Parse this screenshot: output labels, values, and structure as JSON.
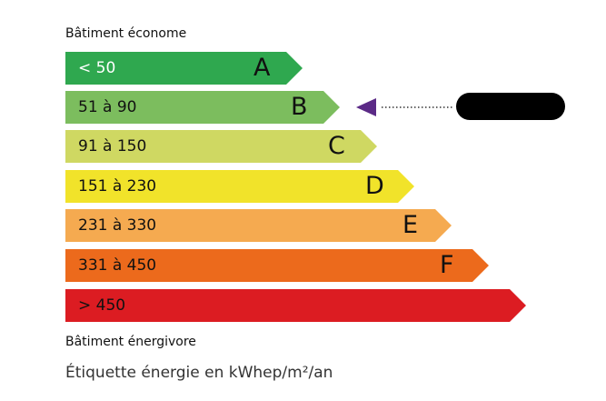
{
  "header": {
    "top_caption": "Bâtiment économe",
    "bottom_caption": "Bâtiment énergivore"
  },
  "classes": [
    {
      "letter": "A",
      "range": "< 50",
      "color": "#2fa84f",
      "text_color": "#ffffff"
    },
    {
      "letter": "B",
      "range": "51 à 90",
      "color": "#7cbd5e",
      "text_color": "#111111"
    },
    {
      "letter": "C",
      "range": "91 à 150",
      "color": "#cfd862",
      "text_color": "#111111"
    },
    {
      "letter": "D",
      "range": "151 à 230",
      "color": "#f1e32a",
      "text_color": "#111111"
    },
    {
      "letter": "E",
      "range": "231 à 330",
      "color": "#f5aa50",
      "text_color": "#111111"
    },
    {
      "letter": "F",
      "range": "331 à 450",
      "color": "#ec6a1c",
      "text_color": "#111111"
    },
    {
      "letter": "",
      "range": "> 450",
      "color": "#dc1c22",
      "text_color": "#111111"
    }
  ],
  "indicator": {
    "class": "B",
    "color": "#5b2a86",
    "label_redacted": true
  },
  "footer": {
    "unit_label": "Étiquette énergie en kWhep/m²/an"
  }
}
